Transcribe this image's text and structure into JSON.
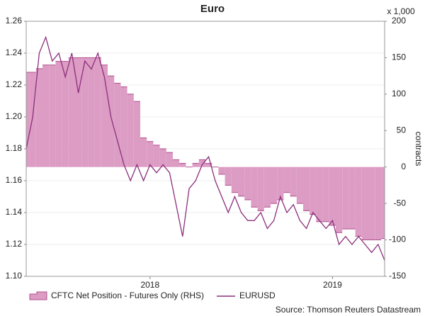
{
  "chart_data": {
    "type": "combo",
    "title": "Euro",
    "y2_unit": "x 1,000",
    "y2_label": "contracts",
    "source": "Source: Thomson Reuters Datastream",
    "categories": [
      null,
      null,
      null,
      null,
      null,
      null,
      null,
      null,
      null,
      null,
      null,
      null,
      null,
      null,
      null,
      null,
      null,
      null,
      null,
      "2018",
      null,
      null,
      null,
      null,
      null,
      null,
      null,
      null,
      null,
      null,
      null,
      null,
      null,
      null,
      null,
      null,
      null,
      null,
      null,
      null,
      null,
      null,
      null,
      null,
      null,
      null,
      null,
      "2019",
      null,
      null,
      null,
      null,
      null,
      null,
      null,
      null
    ],
    "series": [
      {
        "name": "CFTC Net Position - Futures Only (RHS)",
        "type": "bar",
        "axis": "y2",
        "color": "#dc9cc4",
        "edge": "#b0508f",
        "values": [
          130,
          130,
          135,
          140,
          140,
          145,
          145,
          150,
          150,
          150,
          150,
          150,
          140,
          125,
          115,
          110,
          100,
          90,
          40,
          35,
          30,
          25,
          20,
          10,
          5,
          0,
          5,
          10,
          5,
          0,
          -10,
          -25,
          -35,
          -40,
          -45,
          -55,
          -60,
          -55,
          -50,
          -45,
          -35,
          -40,
          -50,
          -60,
          -65,
          -75,
          -75,
          -80,
          -90,
          -85,
          -85,
          -95,
          -100,
          -100,
          -100,
          -98
        ]
      },
      {
        "name": "EURUSD",
        "type": "line",
        "color": "#8c2f7c",
        "values": [
          1.18,
          1.2,
          1.24,
          1.25,
          1.235,
          1.24,
          1.225,
          1.24,
          1.215,
          1.235,
          1.23,
          1.24,
          1.225,
          1.2,
          1.185,
          1.17,
          1.16,
          1.17,
          1.16,
          1.17,
          1.165,
          1.17,
          1.165,
          1.145,
          1.125,
          1.155,
          1.16,
          1.17,
          1.175,
          1.16,
          1.15,
          1.14,
          1.15,
          1.14,
          1.135,
          1.135,
          1.14,
          1.13,
          1.135,
          1.15,
          1.14,
          1.145,
          1.135,
          1.13,
          1.14,
          1.135,
          1.13,
          1.135,
          1.12,
          1.125,
          1.12,
          1.125,
          1.12,
          1.115,
          1.12,
          1.11
        ]
      }
    ],
    "ylim": [
      1.1,
      1.26
    ],
    "yticks": [
      {
        "value": 1.1,
        "label": "1.10"
      },
      {
        "value": 1.12,
        "label": "1.12"
      },
      {
        "value": 1.14,
        "label": "1.14"
      },
      {
        "value": 1.16,
        "label": "1.16"
      },
      {
        "value": 1.18,
        "label": "1.18"
      },
      {
        "value": 1.2,
        "label": "1.20"
      },
      {
        "value": 1.22,
        "label": "1.22"
      },
      {
        "value": 1.24,
        "label": "1.24"
      },
      {
        "value": 1.26,
        "label": "1.26"
      }
    ],
    "y2lim": [
      -150,
      200
    ],
    "y2ticks": [
      -150,
      -100,
      -50,
      0,
      50,
      100,
      150,
      200
    ],
    "grid": true
  }
}
